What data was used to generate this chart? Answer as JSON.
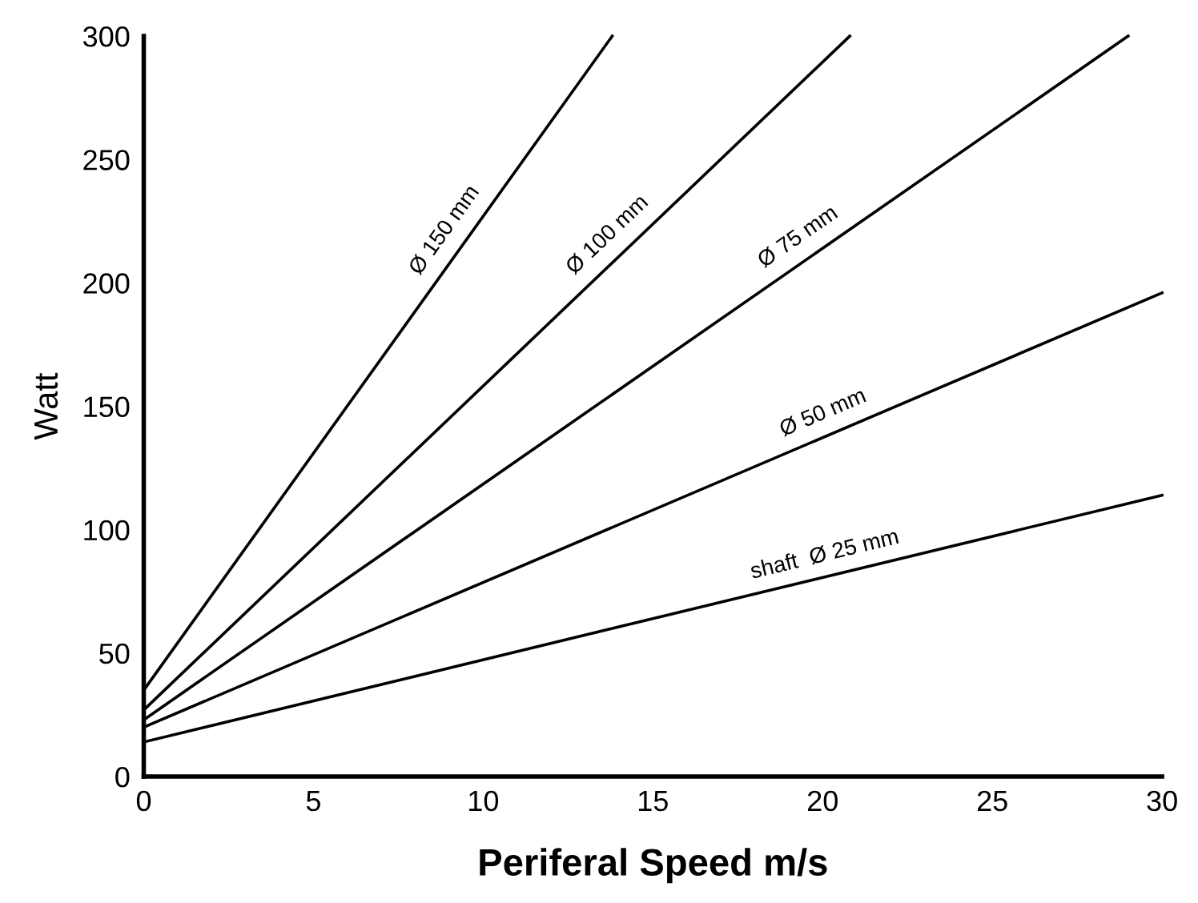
{
  "chart_data": {
    "type": "line",
    "xlabel": "Periferal Speed m/s",
    "ylabel": "Watt",
    "xlim": [
      0,
      30
    ],
    "ylim": [
      0,
      300
    ],
    "xticks": [
      0,
      5,
      10,
      15,
      20,
      25,
      30
    ],
    "yticks": [
      0,
      50,
      100,
      150,
      200,
      250,
      300
    ],
    "grid": false,
    "legend": false,
    "marker": "none",
    "line_style": "solid",
    "series": [
      {
        "name": "Ø 150 mm",
        "color": "#000000",
        "x": [
          0,
          13.8
        ],
        "values": [
          35,
          300
        ]
      },
      {
        "name": "Ø 100 mm",
        "color": "#000000",
        "x": [
          0,
          20.8
        ],
        "values": [
          27,
          300
        ]
      },
      {
        "name": "Ø 75 mm",
        "color": "#000000",
        "x": [
          0,
          29
        ],
        "values": [
          23,
          300
        ]
      },
      {
        "name": "Ø 50 mm",
        "color": "#000000",
        "x": [
          0,
          30
        ],
        "values": [
          20,
          196
        ]
      },
      {
        "name": "shaft  Ø 25 mm",
        "color": "#000000",
        "x": [
          0,
          30
        ],
        "values": [
          14,
          114
        ]
      }
    ]
  }
}
